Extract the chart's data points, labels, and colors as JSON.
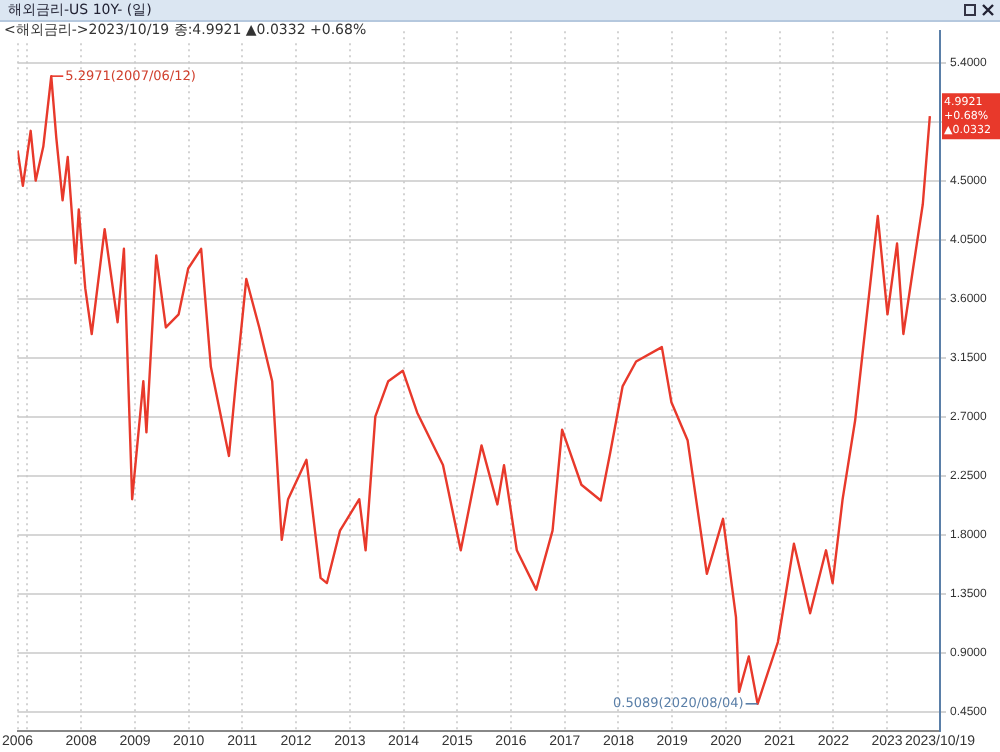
{
  "chart_data": {
    "type": "line",
    "title": "해외금리-US 10Y- (일)",
    "subtitle": "<해외금리->2023/10/19 종:4.9921 ▲0.0332 +0.68%",
    "x": [
      "2006-10-26",
      "2006-12-01",
      "2007-01-23",
      "2007-02-26",
      "2007-04-19",
      "2007-06-12",
      "2007-07-16",
      "2007-08-28",
      "2007-10-02",
      "2007-11-24",
      "2007-12-16",
      "2008-01-29",
      "2008-03-13",
      "2008-06-09",
      "2008-09-05",
      "2008-10-18",
      "2008-12-13",
      "2009-02-27",
      "2009-03-20",
      "2009-05-26",
      "2009-07-30",
      "2009-10-25",
      "2009-12-29",
      "2010-03-27",
      "2010-06-01",
      "2010-10-02",
      "2010-11-19",
      "2011-01-28",
      "2011-04-26",
      "2011-07-23",
      "2011-09-26",
      "2011-11-08",
      "2012-03-12",
      "2012-06-16",
      "2012-07-29",
      "2012-10-26",
      "2013-03-06",
      "2013-04-18",
      "2013-06-23",
      "2013-09-19",
      "2013-12-27",
      "2014-04-04",
      "2014-09-26",
      "2015-01-25",
      "2015-06-15",
      "2015-10-01",
      "2015-11-15",
      "2016-02-10",
      "2016-06-21",
      "2016-10-10",
      "2016-12-14",
      "2017-04-24",
      "2017-09-03",
      "2017-11-07",
      "2018-01-29",
      "2018-05-01",
      "2018-10-23",
      "2018-12-27",
      "2019-04-16",
      "2019-08-25",
      "2019-12-13",
      "2020-03-10",
      "2020-03-31",
      "2020-06-05",
      "2020-08-04",
      "2020-12-20",
      "2021-04-08",
      "2021-07-27",
      "2021-11-12",
      "2021-12-27",
      "2022-03-05",
      "2022-05-29",
      "2022-10-30",
      "2023-01-04",
      "2023-03-10",
      "2023-04-22",
      "2023-06-27",
      "2023-09-01",
      "2023-10-19"
    ],
    "series": [
      {
        "color": "#e8392b",
        "values": [
          4.73,
          4.46,
          4.88,
          4.5,
          4.76,
          5.2971,
          4.83,
          4.35,
          4.68,
          3.87,
          4.28,
          3.68,
          3.33,
          4.13,
          3.42,
          3.98,
          2.07,
          2.97,
          2.58,
          3.93,
          3.38,
          3.48,
          3.83,
          3.98,
          3.08,
          2.4,
          2.97,
          3.75,
          3.38,
          2.97,
          1.76,
          2.07,
          2.37,
          1.47,
          1.43,
          1.83,
          2.07,
          1.68,
          2.7,
          2.97,
          3.05,
          2.73,
          2.33,
          1.68,
          2.48,
          2.03,
          2.33,
          1.68,
          1.38,
          1.83,
          2.6,
          2.18,
          2.06,
          2.43,
          2.93,
          3.12,
          3.23,
          2.81,
          2.52,
          1.5,
          1.92,
          1.17,
          0.6,
          0.87,
          0.5089,
          0.98,
          1.73,
          1.2,
          1.68,
          1.43,
          2.07,
          2.67,
          4.23,
          3.48,
          4.02,
          3.33,
          3.83,
          4.32,
          4.9921
        ]
      }
    ],
    "xlim": [
      "2006-10-26",
      "2023-12-27"
    ],
    "xticks": [
      {
        "value": "2006-10-26",
        "label": "2006"
      },
      {
        "value": "2007-01-01",
        "label": null
      },
      {
        "value": "2008-01-01",
        "label": "2008"
      },
      {
        "value": "2009-01-01",
        "label": "2009"
      },
      {
        "value": "2010-01-01",
        "label": "2010"
      },
      {
        "value": "2011-01-01",
        "label": "2011"
      },
      {
        "value": "2012-01-01",
        "label": "2012"
      },
      {
        "value": "2013-01-01",
        "label": "2013"
      },
      {
        "value": "2014-01-01",
        "label": "2014"
      },
      {
        "value": "2015-01-01",
        "label": "2015"
      },
      {
        "value": "2016-01-01",
        "label": "2016"
      },
      {
        "value": "2017-01-01",
        "label": "2017"
      },
      {
        "value": "2018-01-01",
        "label": "2018"
      },
      {
        "value": "2019-01-01",
        "label": "2019"
      },
      {
        "value": "2020-01-01",
        "label": "2020"
      },
      {
        "value": "2021-01-01",
        "label": "2021"
      },
      {
        "value": "2022-01-01",
        "label": "2022"
      },
      {
        "value": "2023-01-01",
        "label": "2023"
      },
      {
        "value": "2023-12-27",
        "label": "2023/10/19"
      }
    ],
    "ylim": [
      0.3,
      5.64
    ],
    "yticks": [
      {
        "value": 0.45,
        "label": "0.4500"
      },
      {
        "value": 0.9,
        "label": "0.9000"
      },
      {
        "value": 1.35,
        "label": "1.3500"
      },
      {
        "value": 1.8,
        "label": "1.8000"
      },
      {
        "value": 2.25,
        "label": "2.2500"
      },
      {
        "value": 2.7,
        "label": "2.7000"
      },
      {
        "value": 3.15,
        "label": "3.1500"
      },
      {
        "value": 3.6,
        "label": "3.6000"
      },
      {
        "value": 4.05,
        "label": "4.0500"
      },
      {
        "value": 4.5,
        "label": "4.5000"
      },
      {
        "value": 4.95,
        "label": null
      },
      {
        "value": 5.4,
        "label": "5.4000"
      }
    ],
    "grid": true,
    "legend": false,
    "annotations": [
      {
        "text": "5.2971(2007/06/12)",
        "x": "2007-06-12",
        "y": 5.2971
      },
      {
        "text": "0.5089(2020/08/04)",
        "x": "2020-08-04",
        "y": 0.5089
      },
      {
        "text": "4.9921\n+0.68%\n▲0.0332",
        "x": "2023-10-19",
        "y": 4.9921
      }
    ]
  }
}
